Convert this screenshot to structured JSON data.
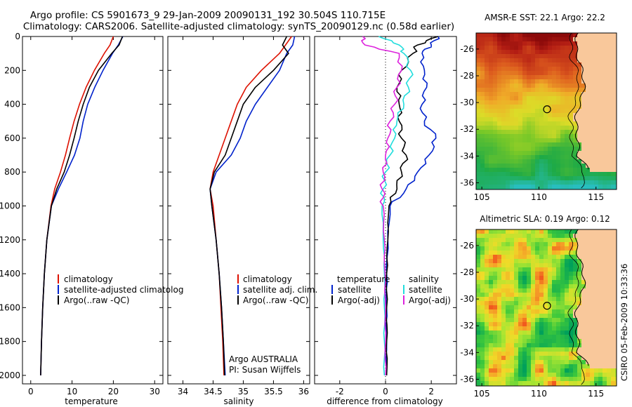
{
  "figure": {
    "title_line1": "Argo profile: CS 5901673_9 29-Jan-2009 20090131_192 30.504S 110.715E",
    "title_line2": "Climatology: CARS2006. Satellite-adjusted climatology: synTS_20090129.nc (0.58d earlier)",
    "credit": "CSIRO 05-Feb-2009 10:33:36",
    "float_info_line1": "Argo AUSTRALIA",
    "float_info_line2": "PI: Susan Wijffels"
  },
  "colors": {
    "climatology": "#dd1100",
    "satellite": "#0022cc",
    "argo": "#000000",
    "salinity_argo": "#dd22dd",
    "salinity_satellite": "#22dddd",
    "land": "#f9c89b"
  },
  "chart_data": [
    {
      "type": "line",
      "id": "temperature",
      "xlabel": "temperature",
      "ylabel": "",
      "xlim": [
        -2,
        32
      ],
      "ylim": [
        2050,
        0
      ],
      "xticks": [
        0,
        10,
        20,
        30
      ],
      "yticks": [
        0,
        200,
        400,
        600,
        800,
        1000,
        1200,
        1400,
        1600,
        1800,
        2000
      ],
      "depth": [
        0,
        50,
        100,
        200,
        300,
        400,
        500,
        600,
        700,
        800,
        900,
        1000,
        1200,
        1400,
        1600,
        1800,
        2000
      ],
      "legend": [
        "climatology",
        "satellite-adjusted climatolog",
        "Argo(..raw -QC)"
      ],
      "series": [
        {
          "name": "climatology",
          "color": "#dd1100",
          "values": [
            20.0,
            19.2,
            17.8,
            15.4,
            13.4,
            11.8,
            10.5,
            9.4,
            8.4,
            7.2,
            5.8,
            4.9,
            3.9,
            3.3,
            2.9,
            2.6,
            2.4
          ]
        },
        {
          "name": "satellite-adjusted climatolog",
          "color": "#0022cc",
          "values": [
            22.3,
            21.2,
            19.8,
            17.5,
            15.5,
            13.8,
            12.7,
            11.9,
            10.6,
            8.7,
            6.7,
            5.0,
            3.9,
            3.3,
            2.9,
            2.6,
            2.4
          ]
        },
        {
          "name": "Argo(..raw -QC)",
          "color": "#000000",
          "values": [
            22.2,
            21.4,
            19.6,
            16.4,
            14.2,
            12.7,
            11.5,
            10.5,
            9.4,
            8.1,
            6.3,
            5.0,
            3.9,
            3.3,
            2.9,
            2.6,
            2.4
          ]
        }
      ]
    },
    {
      "type": "line",
      "id": "salinity",
      "xlabel": "salinity",
      "ylabel": "",
      "xlim": [
        33.75,
        36.1
      ],
      "ylim": [
        2050,
        0
      ],
      "xticks": [
        34,
        34.5,
        35,
        35.5,
        36
      ],
      "depth": [
        0,
        50,
        100,
        200,
        300,
        400,
        500,
        600,
        700,
        800,
        900,
        1000,
        1200,
        1400,
        1600,
        1800,
        2000
      ],
      "legend": [
        "climatology",
        "satellite adj. clim.",
        "Argo(..raw -QC)"
      ],
      "series": [
        {
          "name": "climatology",
          "color": "#dd1100",
          "values": [
            35.8,
            35.7,
            35.6,
            35.3,
            35.05,
            34.9,
            34.8,
            34.7,
            34.6,
            34.5,
            34.45,
            34.5,
            34.55,
            34.6,
            34.63,
            34.66,
            34.68
          ]
        },
        {
          "name": "satellite adj. clim.",
          "color": "#0022cc",
          "values": [
            35.85,
            35.82,
            35.72,
            35.6,
            35.4,
            35.2,
            35.05,
            34.95,
            34.8,
            34.55,
            34.45,
            34.48,
            34.55,
            34.6,
            34.64,
            34.67,
            34.7
          ]
        },
        {
          "name": "Argo(..raw -QC)",
          "color": "#000000",
          "values": [
            35.72,
            35.65,
            35.75,
            35.5,
            35.2,
            35.0,
            34.9,
            34.8,
            34.7,
            34.52,
            34.45,
            34.48,
            34.55,
            34.6,
            34.64,
            34.67,
            34.69
          ]
        }
      ]
    },
    {
      "type": "line",
      "id": "difference",
      "xlabel": "difference from climatology",
      "ylabel": "",
      "xlim": [
        -3.1,
        3.1
      ],
      "ylim": [
        2050,
        0
      ],
      "xticks": [
        -2,
        0,
        2
      ],
      "depth": [
        0,
        50,
        100,
        200,
        300,
        400,
        500,
        600,
        700,
        800,
        900,
        1000,
        1200,
        1400,
        1600,
        1800,
        2000
      ],
      "legend_left_header": "temperature",
      "legend_right_header": "salinity",
      "legend": [
        "satellite",
        "Argo(-adj)",
        "satellite",
        "Argo(-adj)"
      ],
      "series": [
        {
          "name": "satellite",
          "color": "#0022cc",
          "values": [
            2.3,
            2.0,
            1.6,
            1.7,
            1.8,
            1.6,
            1.7,
            2.2,
            1.9,
            1.4,
            0.9,
            0.2,
            0.1,
            0.05,
            0.05,
            0.05,
            0.05
          ]
        },
        {
          "name": "Argo(-adj)",
          "color": "#000000",
          "values": [
            2.3,
            1.4,
            1.2,
            0.7,
            0.5,
            0.6,
            0.6,
            0.7,
            0.9,
            0.7,
            0.5,
            0.15,
            0.1,
            0.05,
            0.05,
            0.05,
            0.05
          ]
        },
        {
          "name": "satellite",
          "color": "#22dddd",
          "values": [
            -0.3,
            0.6,
            0.8,
            1.1,
            1.0,
            0.8,
            0.5,
            0.4,
            0.2,
            0.0,
            -0.1,
            -0.15,
            -0.1,
            -0.05,
            -0.05,
            -0.05,
            -0.05
          ]
        },
        {
          "name": "Argo(-adj)",
          "color": "#dd22dd",
          "values": [
            -1.0,
            -0.9,
            0.6,
            0.7,
            0.5,
            0.4,
            0.2,
            0.1,
            0.0,
            -0.1,
            -0.15,
            -0.1,
            -0.05,
            -0.02,
            0.0,
            0.0,
            0.0
          ]
        }
      ]
    },
    {
      "type": "heatmap",
      "id": "sst_map",
      "title": "AMSR-E SST: 22.1 Argo: 22.2",
      "xlim": [
        104.5,
        116.8
      ],
      "ylim": [
        -36.5,
        -24.8
      ],
      "xticks": [
        105,
        110,
        115
      ],
      "yticks": [
        -26,
        -28,
        -30,
        -32,
        -34,
        -36
      ],
      "argo_position": {
        "lon": 110.715,
        "lat": -30.504
      }
    },
    {
      "type": "heatmap",
      "id": "sla_map",
      "title": "Altimetric SLA: 0.19 Argo: 0.12",
      "xlim": [
        104.5,
        116.8
      ],
      "ylim": [
        -36.5,
        -24.8
      ],
      "xticks": [
        105,
        110,
        115
      ],
      "yticks": [
        -26,
        -28,
        -30,
        -32,
        -34,
        -36
      ],
      "argo_position": {
        "lon": 110.715,
        "lat": -30.504
      }
    }
  ]
}
